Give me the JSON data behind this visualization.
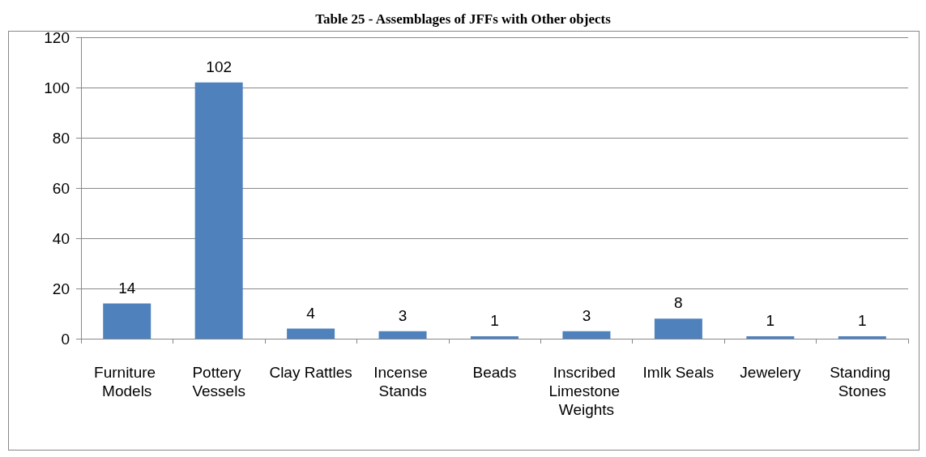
{
  "chart_data": {
    "type": "bar",
    "title": "Table 25 - Assemblages of JFFs with Other objects",
    "categories": [
      "Furniture Models",
      "Pottery Vessels",
      "Clay Rattles",
      "Incense Stands",
      "Beads",
      "Inscribed Limestone Weights",
      "Imlk Seals",
      "Jewelery",
      "Standing Stones"
    ],
    "values": [
      14,
      102,
      4,
      3,
      1,
      3,
      8,
      1,
      1
    ],
    "color": "#4f81bd",
    "ylim": [
      0,
      120
    ],
    "yticks": [
      0,
      20,
      40,
      60,
      80,
      100,
      120
    ],
    "grid": "y",
    "data_labels": true
  }
}
